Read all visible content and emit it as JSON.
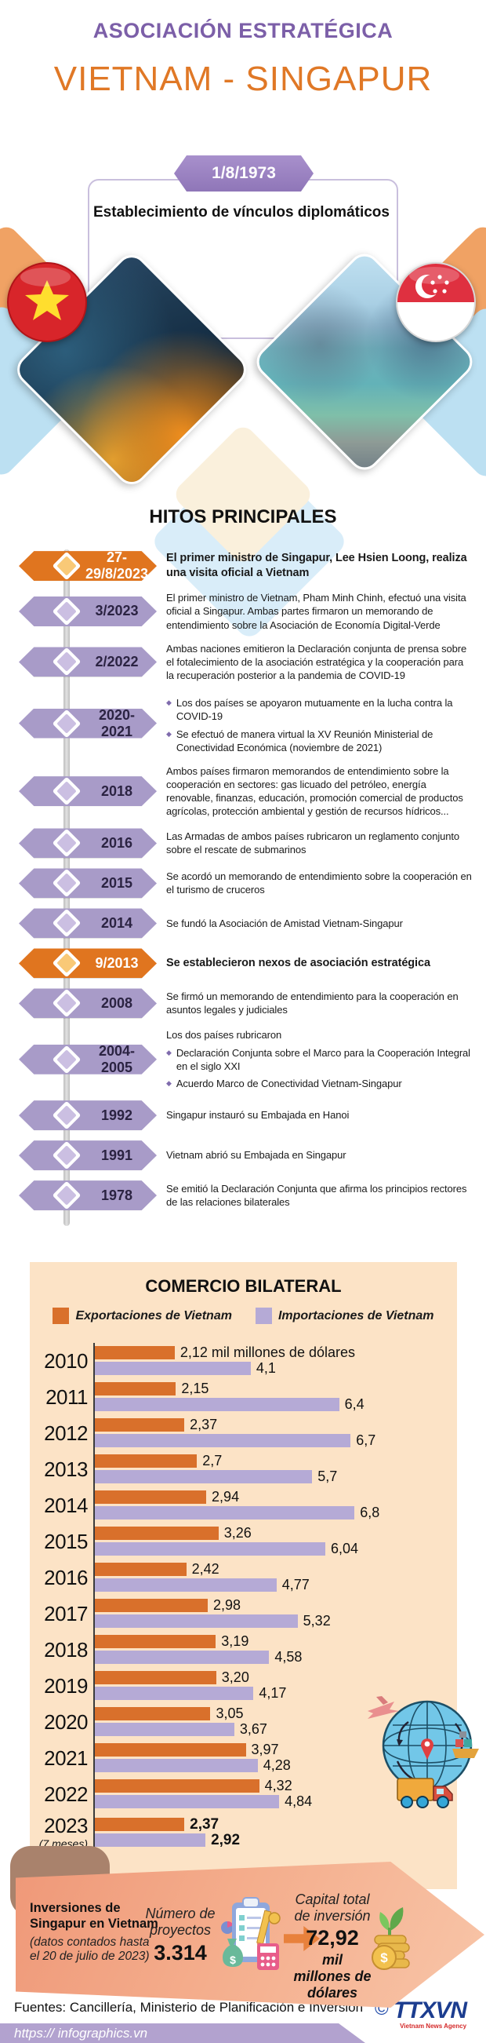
{
  "header": {
    "kicker": "ASOCIACIÓN ESTRATÉGICA",
    "title": "VIETNAM - SINGAPUR"
  },
  "diplomatic": {
    "date": "1/8/1973",
    "text": "Establecimiento de vínculos diplomáticos"
  },
  "sections": {
    "milestones": "HITOS PRINCIPALES"
  },
  "icons": {
    "vietnam_star": "★",
    "bullet": "◆"
  },
  "colors": {
    "kicker_purple": "#7C5FA8",
    "title_orange": "#E07826",
    "ribbon_purple": "#9B84C3",
    "badge_orange": "#E0751F",
    "badge_purple": "#A89BC8",
    "chart_bg_peach": "#FCE3C6",
    "bar_orange": "#D9702B",
    "bar_purple": "#B5AAD6",
    "banner_salmon": "#F2A284",
    "footer_strip_purple": "#B2A2CF"
  },
  "timeline": {
    "entries": [
      {
        "date": "27-29/8/2023",
        "accent": "orange",
        "bold": true,
        "text": "El primer ministro de Singapur, Lee Hsien Loong, realiza una visita oficial a Vietnam"
      },
      {
        "date": "3/2023",
        "accent": "purple",
        "text": "El primer ministro de Vietnam, Pham Minh Chinh, efectuó una visita oficial a Singapur. Ambas partes firmaron un memorando de entendimiento sobre la Asociación de Economía Digital-Verde"
      },
      {
        "date": "2/2022",
        "accent": "purple",
        "text": "Ambas naciones emitieron la Declaración conjunta de prensa sobre el fotalecimiento de la asociación estratégica y la cooperación para la recuperación posterior a la pandemia de COVID-19"
      },
      {
        "date": "2020-2021",
        "accent": "purple",
        "bullets": [
          "Los dos países se apoyaron mutuamente en la lucha contra la COVID-19",
          "Se efectuó de manera virtual la XV Reunión Ministerial de Conectividad Económica (noviembre de 2021)"
        ]
      },
      {
        "date": "2018",
        "accent": "purple",
        "text": "Ambos países firmaron memorandos de entendimiento sobre la cooperación en sectores: gas licuado del petróleo, energía renovable, finanzas, educación, promoción comercial de productos agrícolas, protección ambiental y gestión de recursos hídricos..."
      },
      {
        "date": "2016",
        "accent": "purple",
        "text": "Las Armadas de ambos países rubricaron un reglamento conjunto sobre el rescate de submarinos"
      },
      {
        "date": "2015",
        "accent": "purple",
        "text": "Se acordó un memorando de entendimiento sobre la cooperación en el turismo de cruceros"
      },
      {
        "date": "2014",
        "accent": "purple",
        "text": "Se fundó la Asociación de Amistad Vietnam-Singapur"
      },
      {
        "date": "9/2013",
        "accent": "orange",
        "bold": true,
        "text": "Se establecieron nexos de asociación estratégica"
      },
      {
        "date": "2008",
        "accent": "purple",
        "text": "Se firmó un memorando de entendimiento para la cooperación en asuntos legales y judiciales"
      },
      {
        "date": "2004-2005",
        "accent": "purple",
        "intro": "Los dos países rubricaron",
        "bullets": [
          "Declaración Conjunta sobre el Marco para la Cooperación Integral en el siglo XXI",
          "Acuerdo Marco de Conectividad Vietnam-Singapur"
        ]
      },
      {
        "date": "1992",
        "accent": "purple",
        "text": "Singapur instauró su Embajada en Hanoi"
      },
      {
        "date": "1991",
        "accent": "purple",
        "text": "Vietnam abrió su Embajada en Singapur"
      },
      {
        "date": "1978",
        "accent": "purple",
        "text": "Se emitió la Declaración Conjunta que afirma los principios rectores de las relaciones bilaterales"
      }
    ]
  },
  "chart_data": {
    "type": "bar",
    "orientation": "horizontal",
    "title": "COMERCIO BILATERAL",
    "unit": "mil millones de dólares",
    "legend_position": "top",
    "xlim": [
      0,
      7
    ],
    "categories": [
      "2010",
      "2011",
      "2012",
      "2013",
      "2014",
      "2015",
      "2016",
      "2017",
      "2018",
      "2019",
      "2020",
      "2021",
      "2022",
      "2023"
    ],
    "category_notes": {
      "13": "(7 meses)"
    },
    "emphasized_rows": [
      13
    ],
    "series": [
      {
        "name": "Exportaciones de Vietnam",
        "color": "#D9702B",
        "values": [
          2.12,
          2.15,
          2.37,
          2.7,
          2.94,
          3.26,
          2.42,
          2.98,
          3.19,
          3.2,
          3.05,
          3.97,
          4.32,
          2.37
        ],
        "labels": [
          "2,12 mil millones de dólares",
          "2,15",
          "2,37",
          "2,7",
          "2,94",
          "3,26",
          "2,42",
          "2,98",
          "3,19",
          "3,20",
          "3,05",
          "3,97",
          "4,32",
          "2,37"
        ]
      },
      {
        "name": "Importaciones de Vietnam",
        "color": "#B5AAD6",
        "values": [
          4.1,
          6.4,
          6.7,
          5.7,
          6.8,
          6.04,
          4.77,
          5.32,
          4.58,
          4.17,
          3.67,
          4.28,
          4.84,
          2.92
        ],
        "labels": [
          "4,1",
          "6,4",
          "6,7",
          "5,7",
          "6,8",
          "6,04",
          "4,77",
          "5,32",
          "4,58",
          "4,17",
          "3,67",
          "4,28",
          "4,84",
          "2,92"
        ]
      }
    ]
  },
  "investments": {
    "title": "Inversiones de Singapur en Vietnam",
    "note": "(datos contados hasta el 20 de julio de 2023)",
    "projects_label": "Número de proyectos",
    "projects_value": "3.314",
    "capital_label": "Capital total de inversión",
    "capital_value": "72,92",
    "capital_unit": "mil millones de dólares"
  },
  "footer": {
    "sources": "Fuentes: Cancillería, Ministerio de Planificación e Inversión",
    "copyright": "©",
    "agency": "TTXVN",
    "agency_sub": "Vietnam News Agency",
    "url": "https:// infographics.vn"
  }
}
